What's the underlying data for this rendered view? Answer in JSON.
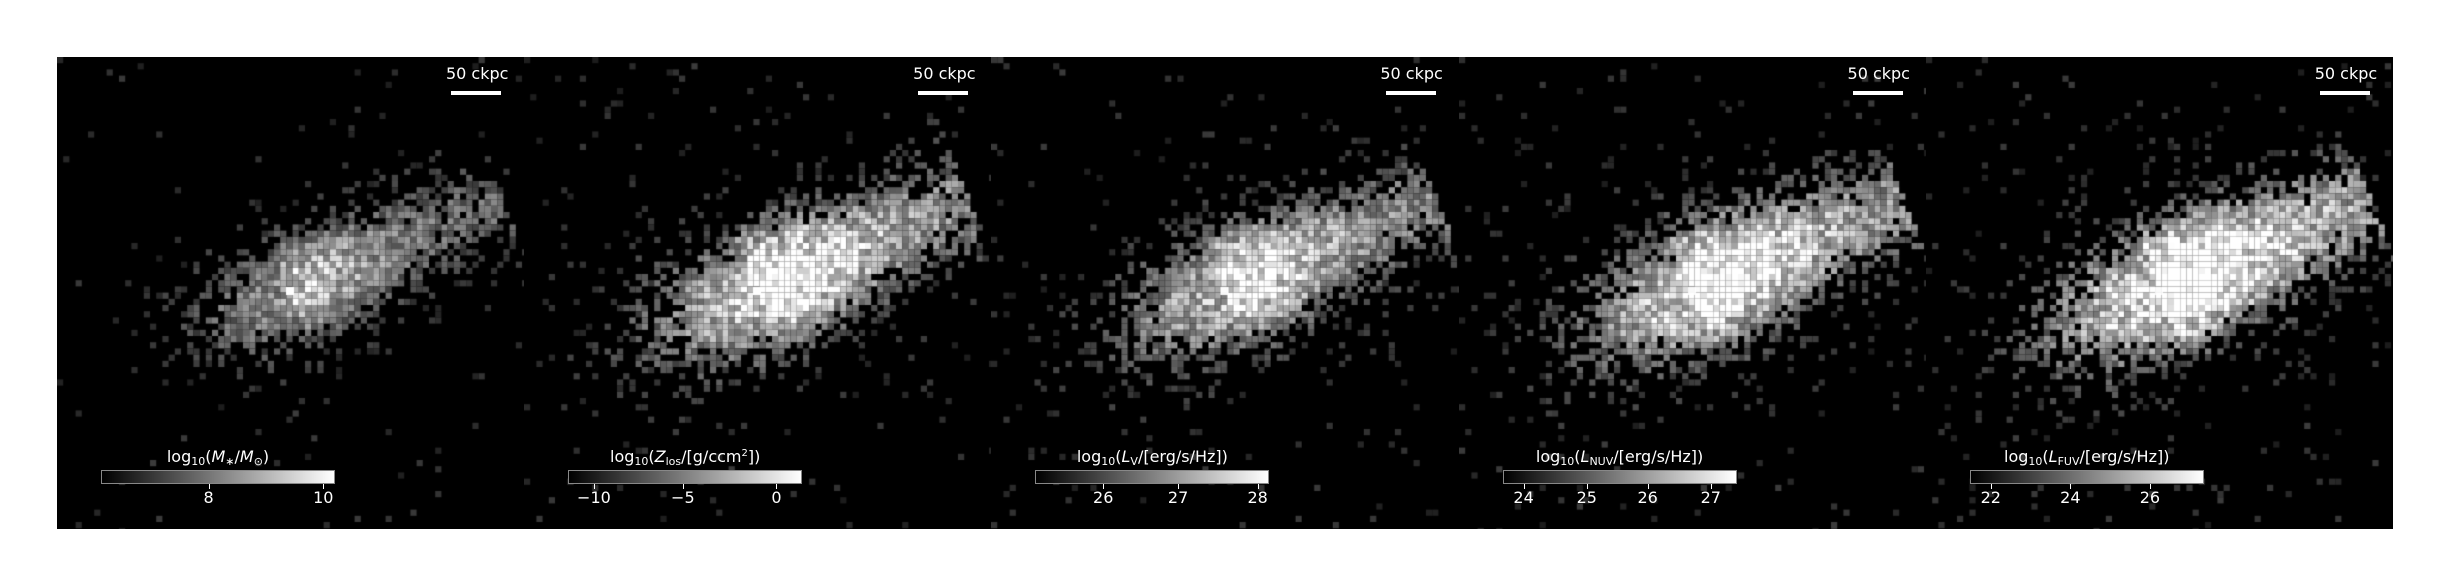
{
  "scalebar": "50 ckpc",
  "panels": [
    {
      "id": "stellar-mass",
      "cbar_label_parts": [
        "log",
        "10",
        "(",
        "M",
        "∗",
        "/",
        "M",
        "⊙",
        ")"
      ],
      "ticks": [
        {
          "label": "8",
          "frac": 0.46
        },
        {
          "label": "10",
          "frac": 0.95
        }
      ],
      "style": {
        "spread": 1.0,
        "bright": 0.55,
        "core": 1.0,
        "noise": 0.35
      }
    },
    {
      "id": "metal-column",
      "cbar_label_parts": [
        "log",
        "10",
        "(",
        "Z",
        "los",
        "/[g/ccm",
        "2",
        "])"
      ],
      "ticks": [
        {
          "label": "−10",
          "frac": 0.11
        },
        {
          "label": "−5",
          "frac": 0.49
        },
        {
          "label": "0",
          "frac": 0.89
        }
      ],
      "style": {
        "spread": 1.4,
        "bright": 0.85,
        "core": 1.0,
        "noise": 0.55
      }
    },
    {
      "id": "v-band",
      "cbar_label_parts": [
        "log",
        "10",
        "(",
        "L",
        "V",
        "/[erg/s/Hz])"
      ],
      "ticks": [
        {
          "label": "26",
          "frac": 0.29
        },
        {
          "label": "27",
          "frac": 0.61
        },
        {
          "label": "28",
          "frac": 0.95
        }
      ],
      "style": {
        "spread": 1.3,
        "bright": 0.75,
        "core": 0.95,
        "noise": 0.6
      }
    },
    {
      "id": "nuv-band",
      "cbar_label_parts": [
        "log",
        "10",
        "(",
        "L",
        "NUV",
        "/[erg/s/Hz])"
      ],
      "ticks": [
        {
          "label": "24",
          "frac": 0.09
        },
        {
          "label": "25",
          "frac": 0.36
        },
        {
          "label": "26",
          "frac": 0.62
        },
        {
          "label": "27",
          "frac": 0.89
        }
      ],
      "style": {
        "spread": 1.45,
        "bright": 0.9,
        "core": 0.9,
        "noise": 0.75
      }
    },
    {
      "id": "fuv-band",
      "cbar_label_parts": [
        "log",
        "10",
        "(",
        "L",
        "FUV",
        "/[erg/s/Hz])"
      ],
      "ticks": [
        {
          "label": "22",
          "frac": 0.09
        },
        {
          "label": "24",
          "frac": 0.43
        },
        {
          "label": "26",
          "frac": 0.77
        }
      ],
      "style": {
        "spread": 1.55,
        "bright": 1.0,
        "core": 0.85,
        "noise": 0.85
      }
    }
  ]
}
